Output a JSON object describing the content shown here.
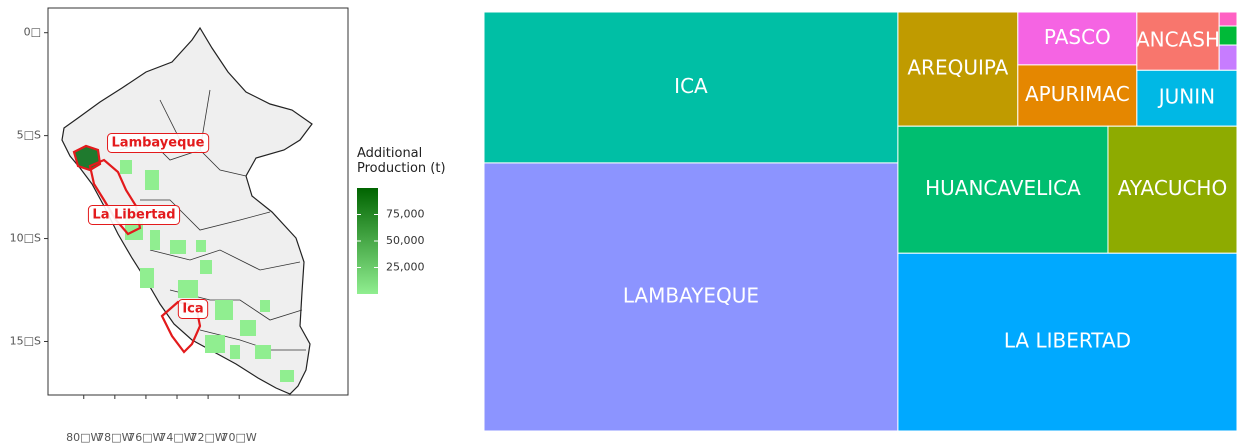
{
  "map": {
    "yticks": [
      {
        "value": 0,
        "label": "0□"
      },
      {
        "value": -5,
        "label": "5□S"
      },
      {
        "value": -10,
        "label": "10□S"
      },
      {
        "value": -15,
        "label": "15□S"
      }
    ],
    "ylim": [
      1.2,
      -17.6
    ],
    "xticks": [
      {
        "value": -80,
        "label": "80□W"
      },
      {
        "value": -78,
        "label": "78□W"
      },
      {
        "value": -76,
        "label": "76□W"
      },
      {
        "value": -74,
        "label": "74□W"
      },
      {
        "value": -72,
        "label": "72□W"
      },
      {
        "value": -70,
        "label": "70□W"
      }
    ],
    "xlim": [
      -82.3,
      -63
    ],
    "annotations": [
      "Lambayeque",
      "La Libertad",
      "Ica"
    ],
    "highlight_color": "#e31a1c"
  },
  "legend": {
    "title": "Additional Production (t)",
    "ticks": [
      {
        "value": 75000,
        "label": "75,000"
      },
      {
        "value": 50000,
        "label": "50,000"
      },
      {
        "value": 25000,
        "label": "25,000"
      }
    ],
    "lim": [
      0,
      100000
    ],
    "colors": [
      "#90ee90",
      "#006400"
    ]
  },
  "chart_data": {
    "type": "treemap",
    "categories": [
      "ICA",
      "LAMBAYEQUE",
      "AREQUIPA",
      "PASCO",
      "APURIMAC",
      "ANCASH",
      "JUNIN",
      "HUANCAVELICA",
      "AYACUCHO",
      "LA LIBERTAD",
      null,
      null,
      null
    ],
    "values": [
      62500,
      111000,
      13700,
      6300,
      7300,
      4800,
      5600,
      26700,
      16400,
      60300,
      250,
      340,
      450
    ],
    "colors": [
      "#00bfa5",
      "#8c94ff",
      "#c09b00",
      "#f564e3",
      "#e58700",
      "#f8766d",
      "#00b8e5",
      "#00be70",
      "#8eab00",
      "#00a9ff",
      "#ff61c3",
      "#00ba38",
      "#c77cff"
    ]
  }
}
